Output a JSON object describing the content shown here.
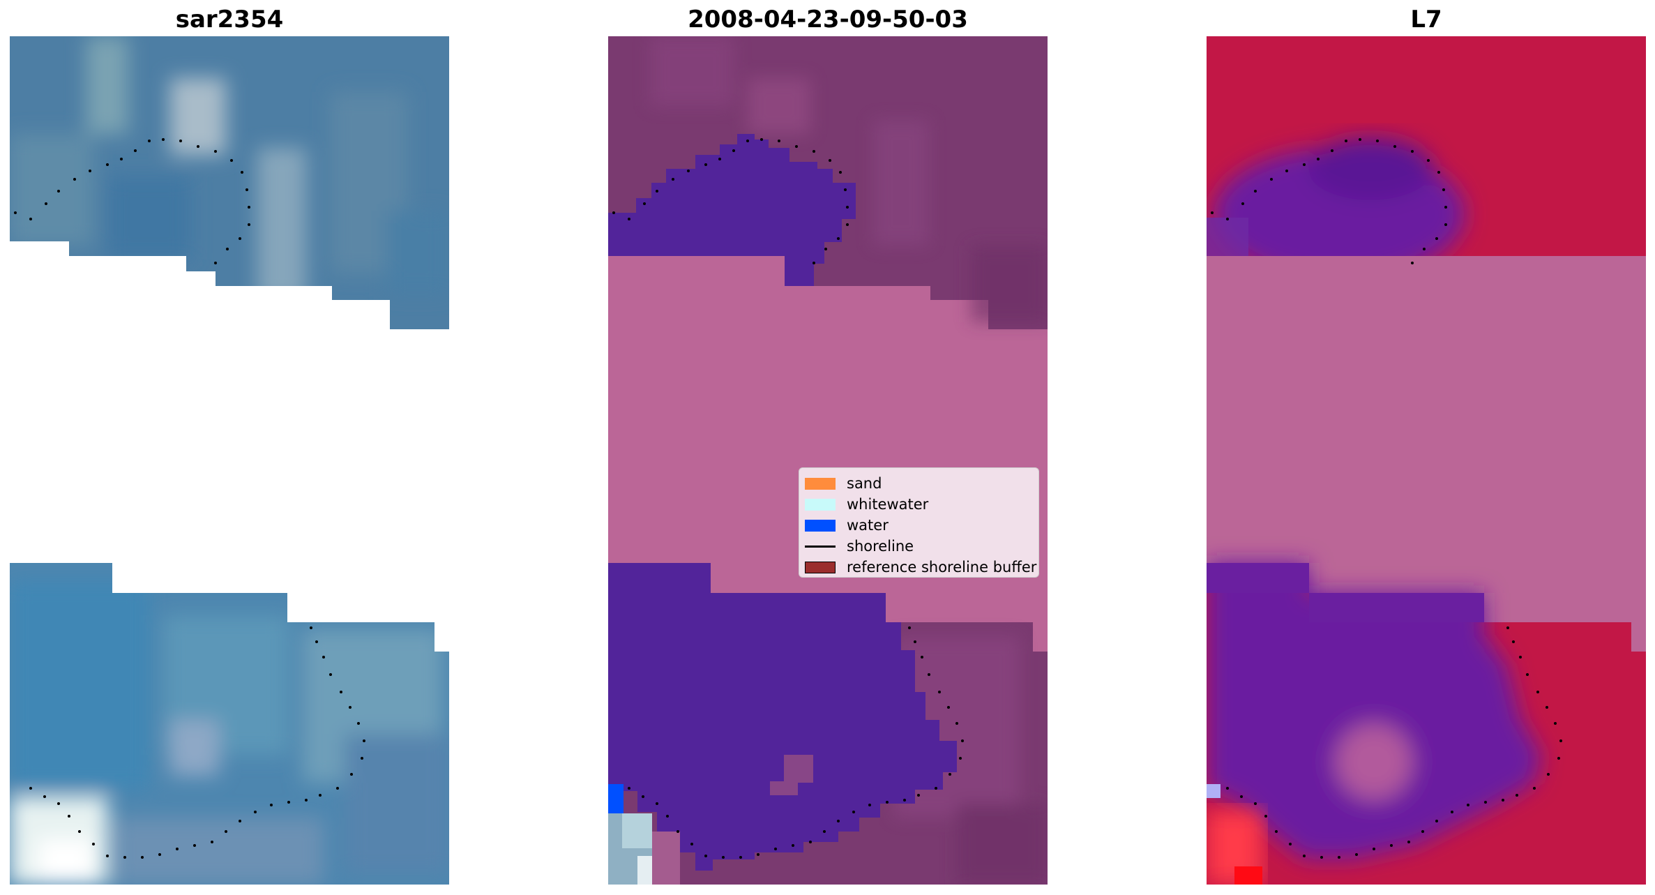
{
  "panels": [
    {
      "title": "sar2354"
    },
    {
      "title": "2008-04-23-09-50-03"
    },
    {
      "title": "L7"
    }
  ],
  "legend": {
    "items": [
      {
        "label": "sand",
        "kind": "patch",
        "color": "#ff8c3c"
      },
      {
        "label": "whitewater",
        "kind": "patch",
        "color": "#c8fafa"
      },
      {
        "label": "water",
        "kind": "patch",
        "color": "#0050ff"
      },
      {
        "label": "shoreline",
        "kind": "line",
        "color": "#000000"
      },
      {
        "label": "reference shoreline buffer",
        "kind": "patch",
        "color": "#9b2d2d"
      }
    ]
  },
  "colors": {
    "rgb_image_base": "#4f7fa3",
    "classified_background": "#bb6697",
    "classified_water_class": "#52249a",
    "classified_land": "#7a3a70",
    "mndwi_land": "#c21746",
    "mndwi_water": "#6a1fa0",
    "shoreline_dots": "#000000"
  }
}
